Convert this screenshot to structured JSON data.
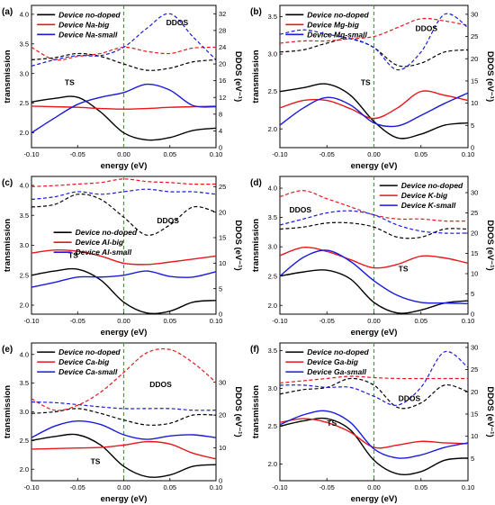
{
  "figure": {
    "colors": {
      "no_doped": "#000000",
      "big": "#e8171d",
      "small": "#1a1adc",
      "fermi": "#34a534"
    }
  },
  "chart_data": [
    {
      "panel": "(a)",
      "type": "line",
      "xlabel": "energy (eV)",
      "ylabel_left": "transmission",
      "ylabel_right": "DDOS (eV⁻¹)",
      "xlim": [
        -0.1,
        0.1
      ],
      "ylim_left": [
        1.75,
        4.15
      ],
      "ylim_right": [
        0,
        34
      ],
      "xticks": [
        "-0.10",
        "-0.05",
        "0.00",
        "0.05",
        "0.10"
      ],
      "yticks_left": [
        "2.0",
        "2.5",
        "3.0",
        "3.5",
        "4.0"
      ],
      "yticks_right": [
        "0",
        "4",
        "8",
        "12",
        "16",
        "20",
        "24",
        "28",
        "32"
      ],
      "legend": {
        "position": "top-left",
        "entries": [
          "Device no-doped",
          "Device Na-big",
          "Device Na-small"
        ]
      },
      "annotations": [
        "TS",
        "DDOS"
      ],
      "x": [
        -0.1,
        -0.075,
        -0.05,
        -0.025,
        0,
        0.025,
        0.05,
        0.075,
        0.1
      ],
      "transmission": [
        {
          "name": "Device no-doped",
          "values": [
            2.52,
            2.58,
            2.6,
            2.35,
            2.0,
            1.88,
            1.92,
            2.04,
            2.08
          ]
        },
        {
          "name": "Device Na-big",
          "values": [
            2.45,
            2.44,
            2.43,
            2.41,
            2.4,
            2.41,
            2.43,
            2.44,
            2.45
          ]
        },
        {
          "name": "Device Na-small",
          "values": [
            2.0,
            2.25,
            2.48,
            2.6,
            2.68,
            2.82,
            2.72,
            2.46,
            2.44
          ]
        }
      ],
      "ddos": [
        {
          "name": "Device no-doped",
          "values": [
            21,
            21.5,
            22.5,
            21.8,
            20,
            18.5,
            19,
            20.5,
            21
          ]
        },
        {
          "name": "Device Na-big",
          "values": [
            24,
            21,
            21.8,
            22.5,
            24,
            23,
            22.5,
            23.8,
            24
          ]
        },
        {
          "name": "Device Na-small",
          "values": [
            19.5,
            21,
            22,
            22,
            24,
            28.5,
            32,
            26.5,
            21
          ]
        }
      ]
    },
    {
      "panel": "(b)",
      "type": "line",
      "xlabel": "energy (eV)",
      "ylabel_left": "transmission",
      "ylabel_right": "DDOS (eV⁻¹)",
      "xlim": [
        -0.1,
        0.1
      ],
      "ylim_left": [
        1.75,
        3.65
      ],
      "ylim_right": [
        0,
        32
      ],
      "xticks": [
        "-0.10",
        "-0.05",
        "0.00",
        "0.05",
        "0.10"
      ],
      "yticks_left": [
        "2.0",
        "2.5",
        "3.0",
        "3.5"
      ],
      "yticks_right": [
        "0",
        "5",
        "10",
        "15",
        "20",
        "25",
        "30"
      ],
      "legend": {
        "position": "top-left",
        "entries": [
          "Device no-doped",
          "Device Mg-big",
          "Device Mg-small"
        ]
      },
      "annotations": [
        "TS",
        "DDOS"
      ],
      "x": [
        -0.1,
        -0.075,
        -0.05,
        -0.025,
        0,
        0.025,
        0.05,
        0.075,
        0.1
      ],
      "transmission": [
        {
          "name": "Device no-doped",
          "values": [
            2.5,
            2.55,
            2.6,
            2.45,
            2.1,
            1.88,
            1.93,
            2.05,
            2.08
          ]
        },
        {
          "name": "Device Mg-big",
          "values": [
            2.28,
            2.38,
            2.38,
            2.27,
            2.14,
            2.28,
            2.5,
            2.45,
            2.38
          ]
        },
        {
          "name": "Device Mg-small",
          "values": [
            2.05,
            2.28,
            2.42,
            2.32,
            2.08,
            2.04,
            2.18,
            2.34,
            2.48
          ]
        }
      ],
      "ddos": [
        {
          "name": "Device no-doped",
          "values": [
            21.5,
            22,
            23.5,
            24.5,
            22.5,
            18.5,
            19,
            21.5,
            22
          ]
        },
        {
          "name": "Device Mg-big",
          "values": [
            23.5,
            24,
            24,
            24.5,
            25,
            27,
            29,
            28.5,
            27.5
          ]
        },
        {
          "name": "Device Mg-small",
          "values": [
            25.5,
            26.5,
            25.5,
            24.5,
            22.5,
            17.5,
            21.5,
            30,
            27
          ]
        }
      ]
    },
    {
      "panel": "(c)",
      "type": "line",
      "xlabel": "energy (eV)",
      "ylabel_left": "transmission",
      "ylabel_right": "DDOS (eV⁻¹)",
      "xlim": [
        -0.1,
        0.1
      ],
      "ylim_left": [
        1.85,
        4.15
      ],
      "ylim_right": [
        0,
        27
      ],
      "xticks": [
        "-0.10",
        "-0.05",
        "0.00",
        "0.05",
        "0.10"
      ],
      "yticks_left": [
        "2.0",
        "2.5",
        "3.0",
        "3.5",
        "4.0"
      ],
      "yticks_right": [
        "0",
        "5",
        "10",
        "15",
        "20",
        "25"
      ],
      "legend": {
        "position": "middle-left",
        "entries": [
          "Device no-doped",
          "Device Al-big",
          "Device Al-small"
        ]
      },
      "annotations": [
        "TS",
        "DDOS"
      ],
      "x": [
        -0.1,
        -0.075,
        -0.05,
        -0.025,
        0,
        0.025,
        0.05,
        0.075,
        0.1
      ],
      "transmission": [
        {
          "name": "Device no-doped",
          "values": [
            2.5,
            2.57,
            2.6,
            2.42,
            2.05,
            1.87,
            1.9,
            2.05,
            2.08
          ]
        },
        {
          "name": "Device Al-big",
          "values": [
            2.87,
            2.92,
            2.9,
            2.82,
            2.7,
            2.68,
            2.72,
            2.77,
            2.82
          ]
        },
        {
          "name": "Device Al-small",
          "values": [
            2.3,
            2.38,
            2.47,
            2.47,
            2.5,
            2.57,
            2.48,
            2.47,
            2.56
          ]
        }
      ],
      "ddos": [
        {
          "name": "Device no-doped",
          "values": [
            21,
            21.5,
            23.5,
            22.5,
            19,
            15.5,
            17.5,
            21,
            20
          ]
        },
        {
          "name": "Device Al-big",
          "values": [
            25,
            25.2,
            25.5,
            25.8,
            26.5,
            26,
            25.8,
            25.5,
            25.5
          ]
        },
        {
          "name": "Device Al-small",
          "values": [
            22.5,
            23,
            24,
            23.5,
            24,
            24.5,
            24,
            24,
            23.5
          ]
        }
      ]
    },
    {
      "panel": "(d)",
      "type": "line",
      "xlabel": "energy (eV)",
      "ylabel_left": "transmission",
      "ylabel_right": "DDOS (eV⁻¹)",
      "xlim": [
        -0.1,
        0.1
      ],
      "ylim_left": [
        1.85,
        4.2
      ],
      "ylim_right": [
        0,
        34
      ],
      "xticks": [
        "-0.10",
        "-0.05",
        "0.00",
        "0.05",
        "0.10"
      ],
      "yticks_left": [
        "2.0",
        "2.5",
        "3.0",
        "3.5",
        "4.0"
      ],
      "yticks_right": [
        "0",
        "5",
        "10",
        "15",
        "20",
        "25",
        "30"
      ],
      "legend": {
        "position": "top-right",
        "entries": [
          "Device no-doped",
          "Device K-big",
          "Device K-small"
        ]
      },
      "annotations": [
        "TS",
        "DDOS"
      ],
      "x": [
        -0.1,
        -0.075,
        -0.05,
        -0.025,
        0,
        0.025,
        0.05,
        0.075,
        0.1
      ],
      "transmission": [
        {
          "name": "Device no-doped",
          "values": [
            2.5,
            2.57,
            2.6,
            2.45,
            2.05,
            1.87,
            1.92,
            2.04,
            2.08
          ]
        },
        {
          "name": "Device K-big",
          "values": [
            2.85,
            2.99,
            2.92,
            2.78,
            2.64,
            2.7,
            2.84,
            2.81,
            2.72
          ]
        },
        {
          "name": "Device K-small",
          "values": [
            2.5,
            2.82,
            2.94,
            2.75,
            2.42,
            2.17,
            2.05,
            2.04,
            2.03
          ]
        }
      ],
      "ddos": [
        {
          "name": "Device no-doped",
          "values": [
            21,
            21.5,
            22.5,
            22.5,
            21.5,
            19,
            19,
            21,
            21
          ]
        },
        {
          "name": "Device K-big",
          "values": [
            29,
            30.5,
            28.5,
            26.5,
            24.5,
            23.5,
            23.5,
            23,
            23
          ]
        },
        {
          "name": "Device K-small",
          "values": [
            22,
            23.5,
            25,
            25.5,
            24.5,
            22,
            20.5,
            20,
            20
          ]
        }
      ]
    },
    {
      "panel": "(e)",
      "type": "line",
      "xlabel": "energy (eV)",
      "ylabel_left": "transmission",
      "ylabel_right": "DDOS (eV⁻¹)",
      "xlim": [
        -0.1,
        0.1
      ],
      "ylim_left": [
        1.8,
        4.2
      ],
      "ylim_right": [
        0,
        42
      ],
      "xticks": [
        "-0.10",
        "-0.05",
        "0.00",
        "0.05",
        "0.10"
      ],
      "yticks_left": [
        "2.0",
        "2.5",
        "3.0",
        "3.5",
        "4.0"
      ],
      "yticks_right": [
        "0",
        "10",
        "20",
        "30"
      ],
      "legend": {
        "position": "top-left",
        "entries": [
          "Device no-doped",
          "Device Ca-big",
          "Device Ca-small"
        ]
      },
      "annotations": [
        "TS",
        "DDOS"
      ],
      "x": [
        -0.1,
        -0.075,
        -0.05,
        -0.025,
        0,
        0.025,
        0.05,
        0.075,
        0.1
      ],
      "transmission": [
        {
          "name": "Device no-doped",
          "values": [
            2.5,
            2.57,
            2.6,
            2.42,
            2.05,
            1.87,
            1.9,
            2.05,
            2.08
          ]
        },
        {
          "name": "Device Ca-big",
          "values": [
            2.35,
            2.36,
            2.37,
            2.38,
            2.42,
            2.48,
            2.44,
            2.28,
            2.18
          ]
        },
        {
          "name": "Device Ca-small",
          "values": [
            2.55,
            2.75,
            2.84,
            2.78,
            2.6,
            2.52,
            2.58,
            2.6,
            2.55
          ]
        }
      ],
      "ddos": [
        {
          "name": "Device no-doped",
          "values": [
            20.5,
            21,
            22,
            20.5,
            18.5,
            17,
            17.5,
            20,
            20
          ]
        },
        {
          "name": "Device Ca-big",
          "values": [
            25,
            21.5,
            23,
            27,
            33,
            39,
            40,
            36,
            30
          ]
        },
        {
          "name": "Device Ca-small",
          "values": [
            24,
            23.8,
            23.2,
            22.5,
            22,
            22,
            22,
            21.5,
            21.5
          ]
        }
      ]
    },
    {
      "panel": "(f)",
      "type": "line",
      "xlabel": "energy (eV)",
      "ylabel_left": "transmission",
      "ylabel_right": "DDOS (eV⁻¹)",
      "xlim": [
        -0.1,
        0.1
      ],
      "ylim_left": [
        1.78,
        3.6
      ],
      "ylim_right": [
        0,
        31
      ],
      "xticks": [
        "-0.10",
        "-0.05",
        "0.00",
        "0.05",
        "0.10"
      ],
      "yticks_left": [
        "2.0",
        "2.5",
        "3.0",
        "3.5"
      ],
      "yticks_right": [
        "5",
        "10",
        "15",
        "20",
        "25",
        "30"
      ],
      "legend": {
        "position": "top-left",
        "entries": [
          "Device no-doped",
          "Device Ga-big",
          "Device Ga-small"
        ]
      },
      "annotations": [
        "TS",
        "DDOS"
      ],
      "x": [
        -0.1,
        -0.075,
        -0.05,
        -0.025,
        0,
        0.025,
        0.05,
        0.075,
        0.1
      ],
      "transmission": [
        {
          "name": "Device no-doped",
          "values": [
            2.5,
            2.57,
            2.6,
            2.45,
            2.05,
            1.87,
            1.9,
            2.05,
            2.08
          ]
        },
        {
          "name": "Device Ga-big",
          "values": [
            2.55,
            2.6,
            2.55,
            2.42,
            2.22,
            2.25,
            2.3,
            2.28,
            2.27
          ]
        },
        {
          "name": "Device Ga-small",
          "values": [
            2.52,
            2.65,
            2.7,
            2.55,
            2.2,
            2.08,
            2.12,
            2.22,
            2.28
          ]
        }
      ],
      "ddos": [
        {
          "name": "Device no-doped",
          "values": [
            19.5,
            20.5,
            21,
            23,
            21.5,
            16.5,
            17.5,
            21.5,
            20
          ]
        },
        {
          "name": "Device Ga-big",
          "values": [
            22,
            22.5,
            23,
            23.5,
            23.2,
            23,
            23,
            23,
            23
          ]
        },
        {
          "name": "Device Ga-small",
          "values": [
            21.5,
            21.5,
            21,
            21,
            19,
            17,
            21,
            29,
            25.5
          ]
        }
      ]
    }
  ]
}
